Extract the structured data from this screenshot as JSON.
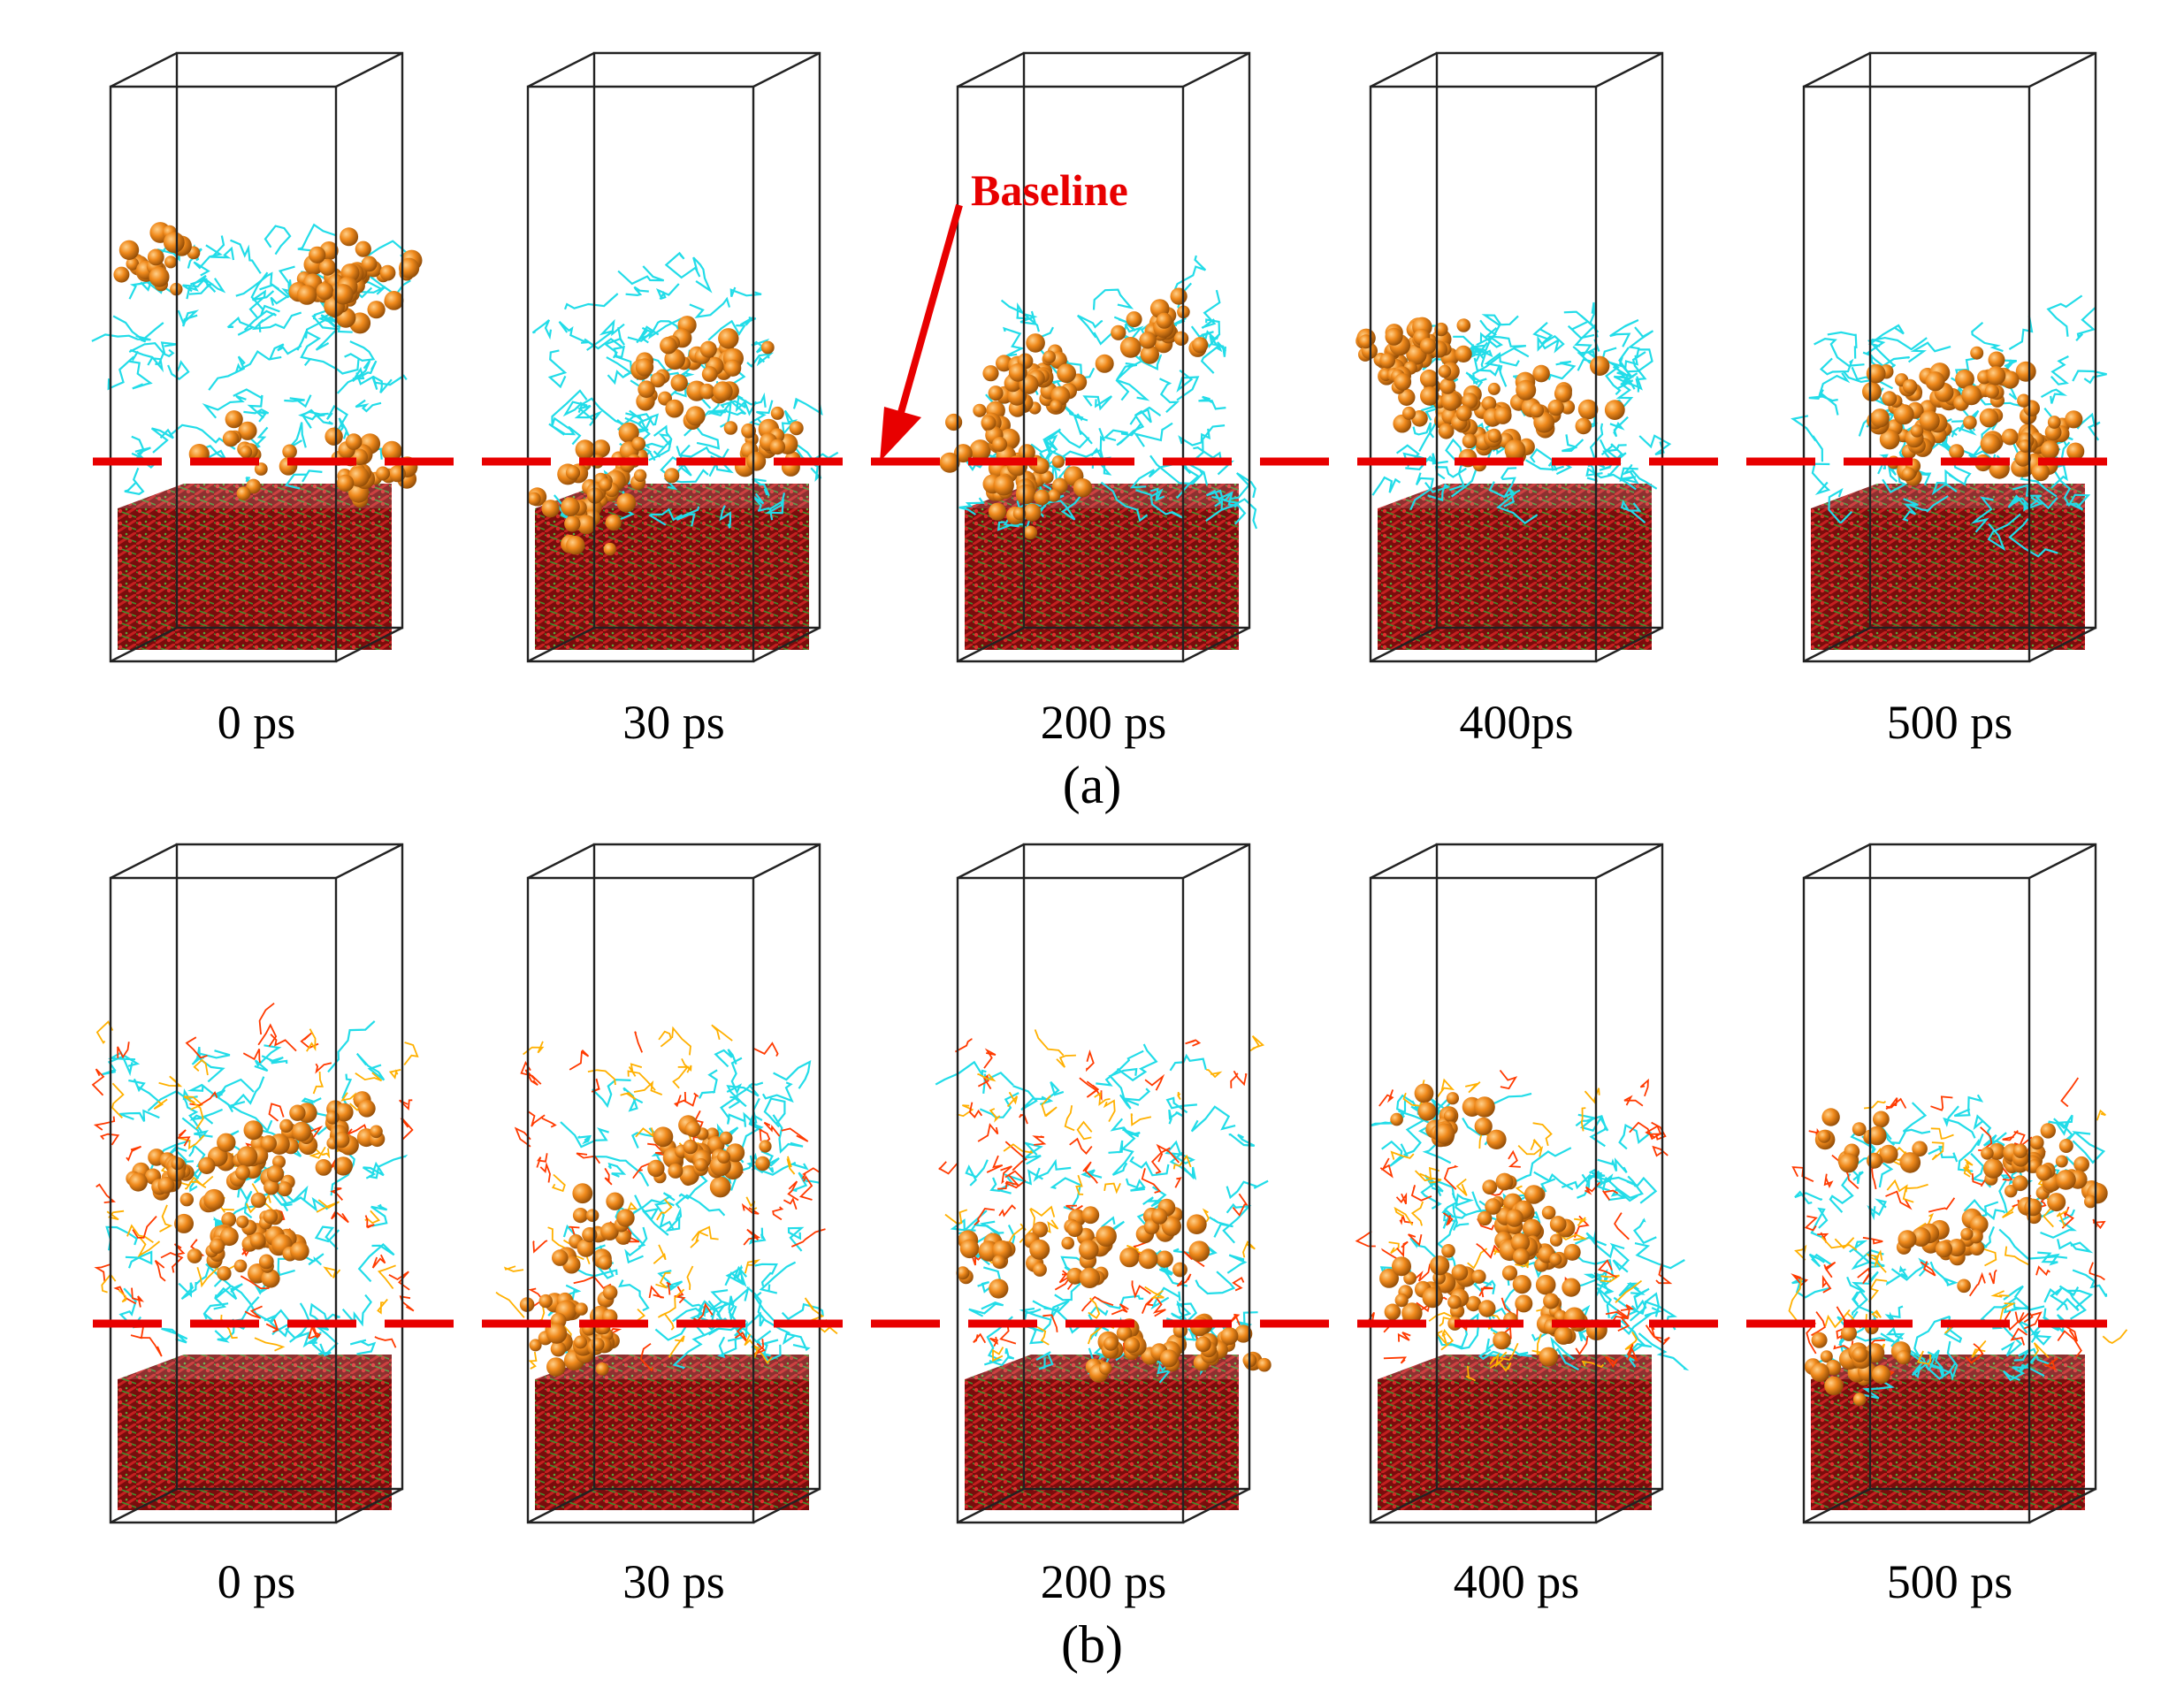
{
  "colors": {
    "baseline": "#e80000",
    "asphaltene": "#e07a12",
    "resin": "#22dce8",
    "additive": "#ff3a00",
    "mineral_red": "#9a1010",
    "mineral_green": "#3c8a2a",
    "box_edge": "#222222"
  },
  "annotation": {
    "baseline_label": "Baseline"
  },
  "panel_a": {
    "label": "(a)",
    "snapshots": [
      {
        "time": "0 ps"
      },
      {
        "time": "30 ps"
      },
      {
        "time": "200 ps"
      },
      {
        "time": "400ps"
      },
      {
        "time": "500 ps"
      }
    ]
  },
  "panel_b": {
    "label": "(b)",
    "snapshots": [
      {
        "time": "0 ps"
      },
      {
        "time": "30 ps"
      },
      {
        "time": "200 ps"
      },
      {
        "time": "400 ps"
      },
      {
        "time": "500 ps"
      }
    ]
  }
}
